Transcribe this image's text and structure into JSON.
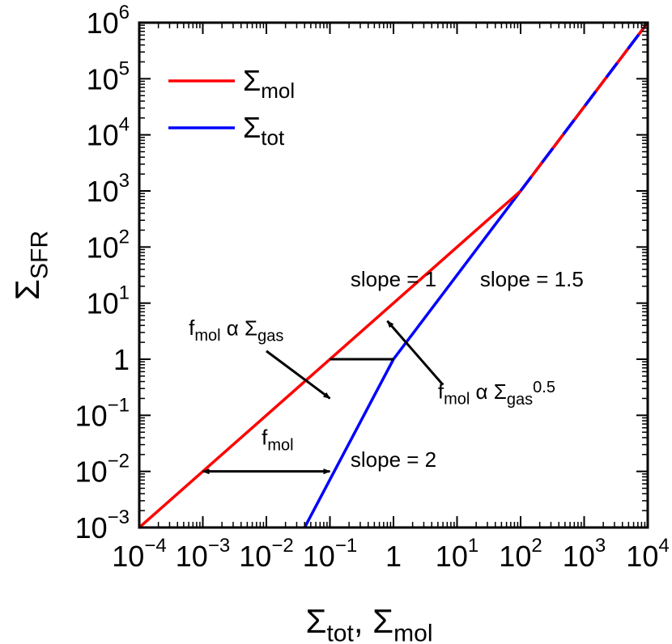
{
  "chart_data": {
    "type": "line",
    "xscale": "log",
    "yscale": "log",
    "xlim": [
      0.0001,
      10000
    ],
    "ylim": [
      0.001,
      1000000
    ],
    "xlabel": {
      "parts": [
        [
          "Σ",
          ""
        ],
        [
          "tot",
          "sub"
        ],
        [
          ", Σ",
          ""
        ],
        [
          "mol",
          "sub"
        ]
      ]
    },
    "ylabel": {
      "parts": [
        [
          "Σ",
          ""
        ],
        [
          "SFR",
          "sub"
        ]
      ]
    },
    "x_ticks": [
      {
        "value": 0.0001,
        "parts": [
          [
            "10",
            ""
          ],
          [
            "−4",
            "sup"
          ]
        ]
      },
      {
        "value": 0.001,
        "parts": [
          [
            "10",
            ""
          ],
          [
            "−3",
            "sup"
          ]
        ]
      },
      {
        "value": 0.01,
        "parts": [
          [
            "10",
            ""
          ],
          [
            "−2",
            "sup"
          ]
        ]
      },
      {
        "value": 0.1,
        "parts": [
          [
            "10",
            ""
          ],
          [
            "−1",
            "sup"
          ]
        ]
      },
      {
        "value": 1,
        "parts": [
          [
            "1",
            ""
          ]
        ]
      },
      {
        "value": 10,
        "parts": [
          [
            "10",
            ""
          ],
          [
            "1",
            "sup"
          ]
        ]
      },
      {
        "value": 100,
        "parts": [
          [
            "10",
            ""
          ],
          [
            "2",
            "sup"
          ]
        ]
      },
      {
        "value": 1000,
        "parts": [
          [
            "10",
            ""
          ],
          [
            "3",
            "sup"
          ]
        ]
      },
      {
        "value": 10000,
        "parts": [
          [
            "10",
            ""
          ],
          [
            "4",
            "sup"
          ]
        ]
      }
    ],
    "y_ticks": [
      {
        "value": 0.001,
        "parts": [
          [
            "10",
            ""
          ],
          [
            "−3",
            "sup"
          ]
        ]
      },
      {
        "value": 0.01,
        "parts": [
          [
            "10",
            ""
          ],
          [
            "−2",
            "sup"
          ]
        ]
      },
      {
        "value": 0.1,
        "parts": [
          [
            "10",
            ""
          ],
          [
            "−1",
            "sup"
          ]
        ]
      },
      {
        "value": 1,
        "parts": [
          [
            "1",
            ""
          ]
        ]
      },
      {
        "value": 10,
        "parts": [
          [
            "10",
            ""
          ],
          [
            "1",
            "sup"
          ]
        ]
      },
      {
        "value": 100,
        "parts": [
          [
            "10",
            ""
          ],
          [
            "2",
            "sup"
          ]
        ]
      },
      {
        "value": 1000,
        "parts": [
          [
            "10",
            ""
          ],
          [
            "3",
            "sup"
          ]
        ]
      },
      {
        "value": 10000,
        "parts": [
          [
            "10",
            ""
          ],
          [
            "4",
            "sup"
          ]
        ]
      },
      {
        "value": 100000,
        "parts": [
          [
            "10",
            ""
          ],
          [
            "5",
            "sup"
          ]
        ]
      },
      {
        "value": 1000000,
        "parts": [
          [
            "10",
            ""
          ],
          [
            "6",
            "sup"
          ]
        ]
      }
    ],
    "series": [
      {
        "name": "Σmol",
        "legend_parts": [
          [
            "Σ",
            ""
          ],
          [
            "mol",
            "sub"
          ]
        ],
        "color": "#ff0000",
        "x": [
          0.0001,
          100,
          10000
        ],
        "y": [
          0.001,
          1000,
          1000000
        ]
      },
      {
        "name": "Σtot",
        "legend_parts": [
          [
            "Σ",
            ""
          ],
          [
            "tot",
            "sub"
          ]
        ],
        "color": "#0000ff",
        "x": [
          0.04,
          1,
          100,
          10000
        ],
        "y": [
          0.001,
          1,
          1000,
          1000000
        ]
      }
    ],
    "overlap_dash": {
      "from_x": 100,
      "to_x": 10000
    },
    "legend_position": "top-left",
    "grid": false,
    "annotations": [
      {
        "id": "slope1",
        "parts": [
          [
            "slope = 1",
            ""
          ]
        ],
        "x": 1,
        "y": 20,
        "anchor": "middle"
      },
      {
        "id": "slope15",
        "parts": [
          [
            "slope = 1.5",
            ""
          ]
        ],
        "x": 150,
        "y": 20,
        "anchor": "middle"
      },
      {
        "id": "slope2",
        "parts": [
          [
            "slope = 2",
            ""
          ]
        ],
        "x": 1,
        "y": 0.012,
        "anchor": "middle"
      },
      {
        "id": "fmol",
        "parts": [
          [
            "f",
            ""
          ],
          [
            "mol",
            "sub"
          ]
        ],
        "x": 0.015,
        "y": 0.03,
        "anchor": "middle"
      },
      {
        "id": "fmol-prop",
        "parts": [
          [
            "f",
            ""
          ],
          [
            "mol",
            "sub"
          ],
          [
            " α Σ",
            ""
          ],
          [
            "gas",
            "sub"
          ]
        ],
        "x": 0.0006,
        "y": 2.7,
        "anchor": "start"
      },
      {
        "id": "fmol-prop-05",
        "parts": [
          [
            "f",
            ""
          ],
          [
            "mol",
            "sub"
          ],
          [
            " α Σ",
            ""
          ],
          [
            "gas",
            "sub"
          ],
          [
            "0.5",
            "sup"
          ]
        ],
        "x": 5,
        "y": 0.2,
        "anchor": "start"
      }
    ],
    "segments": [
      {
        "id": "bracket-1",
        "x1": 0.1,
        "y1": 1,
        "x2": 1,
        "y2": 1,
        "arrow": "none"
      },
      {
        "id": "arrow-fmol",
        "x1": 0.001,
        "y1": 0.01,
        "x2": 0.1,
        "y2": 0.01,
        "arrow": "both"
      },
      {
        "id": "arrow-slope1",
        "x1": 0.01,
        "y1": 1.4,
        "x2": 0.1,
        "y2": 0.2,
        "arrow": "end"
      },
      {
        "id": "arrow-slope15",
        "x1": 6,
        "y1": 0.35,
        "x2": 0.8,
        "y2": 4.8,
        "arrow": "end"
      }
    ]
  }
}
